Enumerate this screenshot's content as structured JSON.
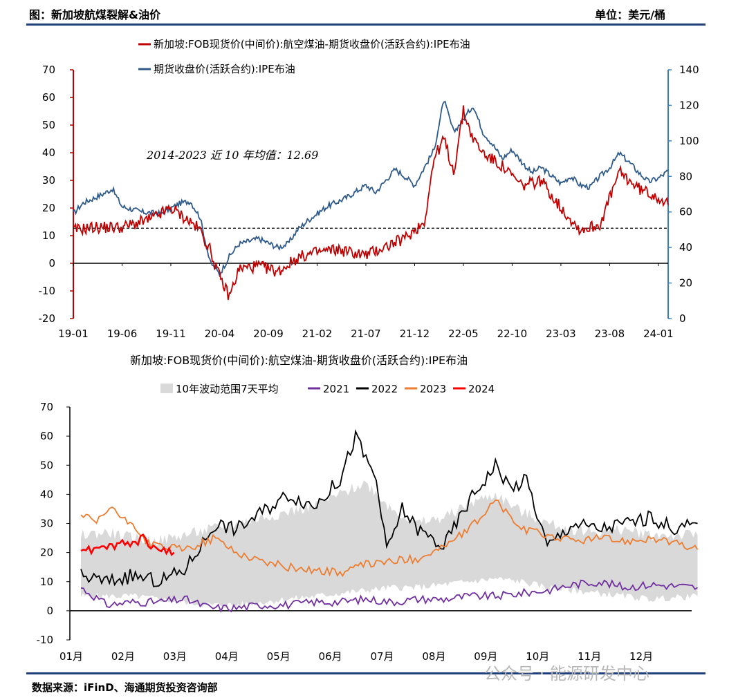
{
  "header": {
    "title": "图：新加坡航煤裂解&油价",
    "unit": "单位：美元/桶"
  },
  "footer": {
    "source": "数据来源：iFinD、海通期货投资咨询部",
    "watermark": "公众号 · 能源研发中心"
  },
  "colors": {
    "red": "#c00000",
    "blue": "#2f5a8a",
    "purple": "#7030a0",
    "black": "#000000",
    "orange": "#ed7d31",
    "bright_red": "#ff0000",
    "band": "#d9d9d9",
    "rule": "#1f3f7a"
  },
  "chart_data": [
    {
      "type": "line",
      "legend": [
        "新加坡:FOB现货价(中间价):航空煤油-期货收盘价(活跃合约):IPE布油",
        "期货收盘价(活跃合约):IPE布油"
      ],
      "annotation": "2014-2023 近 10 年均值：12.69",
      "reference_line": 12.69,
      "x_tick_labels": [
        "19-01",
        "19-06",
        "19-11",
        "20-04",
        "20-09",
        "21-02",
        "21-07",
        "21-12",
        "22-05",
        "22-10",
        "23-03",
        "23-08",
        "24-01"
      ],
      "y_left": {
        "range": [
          -20,
          70
        ],
        "ticks": [
          "-20",
          "-10",
          "0",
          "10",
          "20",
          "30",
          "40",
          "50",
          "60",
          "70"
        ]
      },
      "y_right": {
        "range": [
          0,
          140
        ],
        "ticks": [
          "0",
          "20",
          "40",
          "60",
          "80",
          "100",
          "120",
          "140"
        ]
      },
      "series": [
        {
          "name": "新加坡:FOB现货价(中间价):航空煤油-期货收盘价(活跃合约):IPE布油",
          "axis": "left",
          "x": [
            "2019-01",
            "2019-03",
            "2019-06",
            "2019-09",
            "2019-11",
            "2020-01",
            "2020-02",
            "2020-03",
            "2020-04",
            "2020-05",
            "2020-06",
            "2020-08",
            "2020-10",
            "2020-12",
            "2021-02",
            "2021-04",
            "2021-07",
            "2021-09",
            "2021-11",
            "2022-01",
            "2022-02",
            "2022-03",
            "2022-04",
            "2022-05",
            "2022-06",
            "2022-07",
            "2022-09",
            "2022-11",
            "2023-01",
            "2023-03",
            "2023-05",
            "2023-07",
            "2023-09",
            "2023-11",
            "2024-01",
            "2024-02"
          ],
          "y": [
            12,
            13,
            13,
            16,
            20,
            15,
            12,
            5,
            -5,
            -12,
            -2,
            -1,
            -3,
            2,
            4,
            5,
            3,
            6,
            9,
            15,
            38,
            45,
            33,
            55,
            45,
            40,
            35,
            28,
            30,
            20,
            12,
            14,
            33,
            27,
            24,
            21
          ]
        },
        {
          "name": "期货收盘价(活跃合约):IPE布油",
          "axis": "right",
          "x": [
            "2019-01",
            "2019-02",
            "2019-04",
            "2019-05",
            "2019-06",
            "2019-08",
            "2019-10",
            "2019-12",
            "2020-01",
            "2020-02",
            "2020-03",
            "2020-04",
            "2020-05",
            "2020-06",
            "2020-08",
            "2020-10",
            "2020-11",
            "2020-12",
            "2021-01",
            "2021-03",
            "2021-05",
            "2021-07",
            "2021-08",
            "2021-10",
            "2021-11",
            "2021-12",
            "2022-01",
            "2022-02",
            "2022-03",
            "2022-04",
            "2022-05",
            "2022-06",
            "2022-07",
            "2022-08",
            "2022-09",
            "2022-10",
            "2022-11",
            "2022-12",
            "2023-01",
            "2023-03",
            "2023-04",
            "2023-05",
            "2023-06",
            "2023-07",
            "2023-08",
            "2023-09",
            "2023-10",
            "2023-11",
            "2023-12",
            "2024-01",
            "2024-02"
          ],
          "y": [
            59,
            65,
            70,
            73,
            63,
            60,
            59,
            65,
            66,
            57,
            32,
            25,
            35,
            42,
            45,
            40,
            42,
            50,
            55,
            63,
            68,
            75,
            71,
            84,
            80,
            75,
            85,
            95,
            123,
            105,
            112,
            120,
            105,
            98,
            90,
            95,
            88,
            82,
            85,
            76,
            80,
            75,
            74,
            80,
            85,
            93,
            88,
            82,
            77,
            79,
            83
          ]
        }
      ]
    },
    {
      "type": "line",
      "title": "新加坡:FOB现货价(中间价):航空煤油-期货收盘价(活跃合约):IPE布油",
      "legend": [
        "10年波动范围7天平均",
        "2021",
        "2022",
        "2023",
        "2024"
      ],
      "x_tick_labels": [
        "01月",
        "02月",
        "03月",
        "04月",
        "05月",
        "06月",
        "07月",
        "08月",
        "09月",
        "10月",
        "11月",
        "12月"
      ],
      "y_range": [
        -10,
        70
      ],
      "y_ticks": [
        "-10",
        "0",
        "10",
        "20",
        "30",
        "40",
        "50",
        "60",
        "70"
      ],
      "x_unit": "month",
      "band": {
        "name": "10年波动范围7天平均",
        "x": [
          1,
          1.5,
          2,
          2.5,
          3,
          3.5,
          4,
          4.5,
          5,
          5.5,
          6,
          6.5,
          7,
          7.5,
          8,
          8.5,
          9,
          9.5,
          10,
          10.5,
          11,
          11.5,
          12,
          12.9
        ],
        "low": [
          5,
          5,
          5,
          4,
          3,
          2,
          2,
          3,
          4,
          5,
          6,
          7,
          8,
          8,
          9,
          10,
          11,
          10,
          8,
          7,
          6,
          5,
          4,
          5
        ],
        "high": [
          26,
          27,
          25,
          24,
          26,
          28,
          30,
          32,
          34,
          36,
          40,
          44,
          35,
          30,
          32,
          37,
          40,
          34,
          30,
          28,
          27,
          28,
          26,
          26
        ]
      },
      "series": [
        {
          "name": "2021",
          "x": [
            1,
            1.5,
            2,
            2.5,
            3,
            3.5,
            4,
            4.5,
            5,
            5.5,
            6,
            6.5,
            7,
            7.5,
            8,
            8.5,
            9,
            9.5,
            10,
            10.5,
            11,
            11.5,
            12,
            12.9
          ],
          "y": [
            8,
            2,
            3,
            3,
            4,
            1,
            1,
            2,
            2,
            3,
            3,
            4,
            3,
            4,
            4,
            5,
            5,
            6,
            7,
            9,
            10,
            8,
            9,
            8
          ]
        },
        {
          "name": "2022",
          "x": [
            1,
            1.5,
            2,
            2.5,
            3,
            3.3,
            3.6,
            4,
            4.5,
            5,
            5.5,
            6,
            6.3,
            6.5,
            6.7,
            6.9,
            7.2,
            7.5,
            8,
            8.5,
            9,
            9.3,
            9.6,
            10,
            10.5,
            11,
            11.5,
            12,
            12.5,
            12.9
          ],
          "y": [
            12,
            10,
            12,
            10,
            14,
            22,
            30,
            28,
            34,
            40,
            36,
            45,
            60,
            52,
            45,
            20,
            35,
            28,
            22,
            38,
            50,
            42,
            45,
            22,
            30,
            28,
            30,
            32,
            28,
            30
          ]
        },
        {
          "name": "2023",
          "x": [
            1,
            1.3,
            1.6,
            1.8,
            2,
            2.3,
            2.6,
            3,
            3.3,
            3.6,
            4,
            4.5,
            5,
            5.5,
            6,
            6.5,
            7,
            7.5,
            8,
            8.5,
            9,
            9.5,
            10,
            10.5,
            11,
            11.5,
            12,
            12.5,
            12.9
          ],
          "y": [
            33,
            30,
            36,
            31,
            30,
            23,
            22,
            21,
            23,
            25,
            20,
            17,
            15,
            14,
            13,
            16,
            17,
            18,
            22,
            28,
            38,
            28,
            26,
            24,
            25,
            24,
            25,
            23,
            21
          ]
        },
        {
          "name": "2024",
          "x": [
            1,
            1.2,
            1.4,
            1.6,
            1.8,
            2,
            2.2,
            2.4,
            2.6,
            2.8
          ],
          "y": [
            22,
            21,
            23,
            22,
            24,
            23,
            25,
            22,
            21,
            20
          ]
        }
      ]
    }
  ]
}
